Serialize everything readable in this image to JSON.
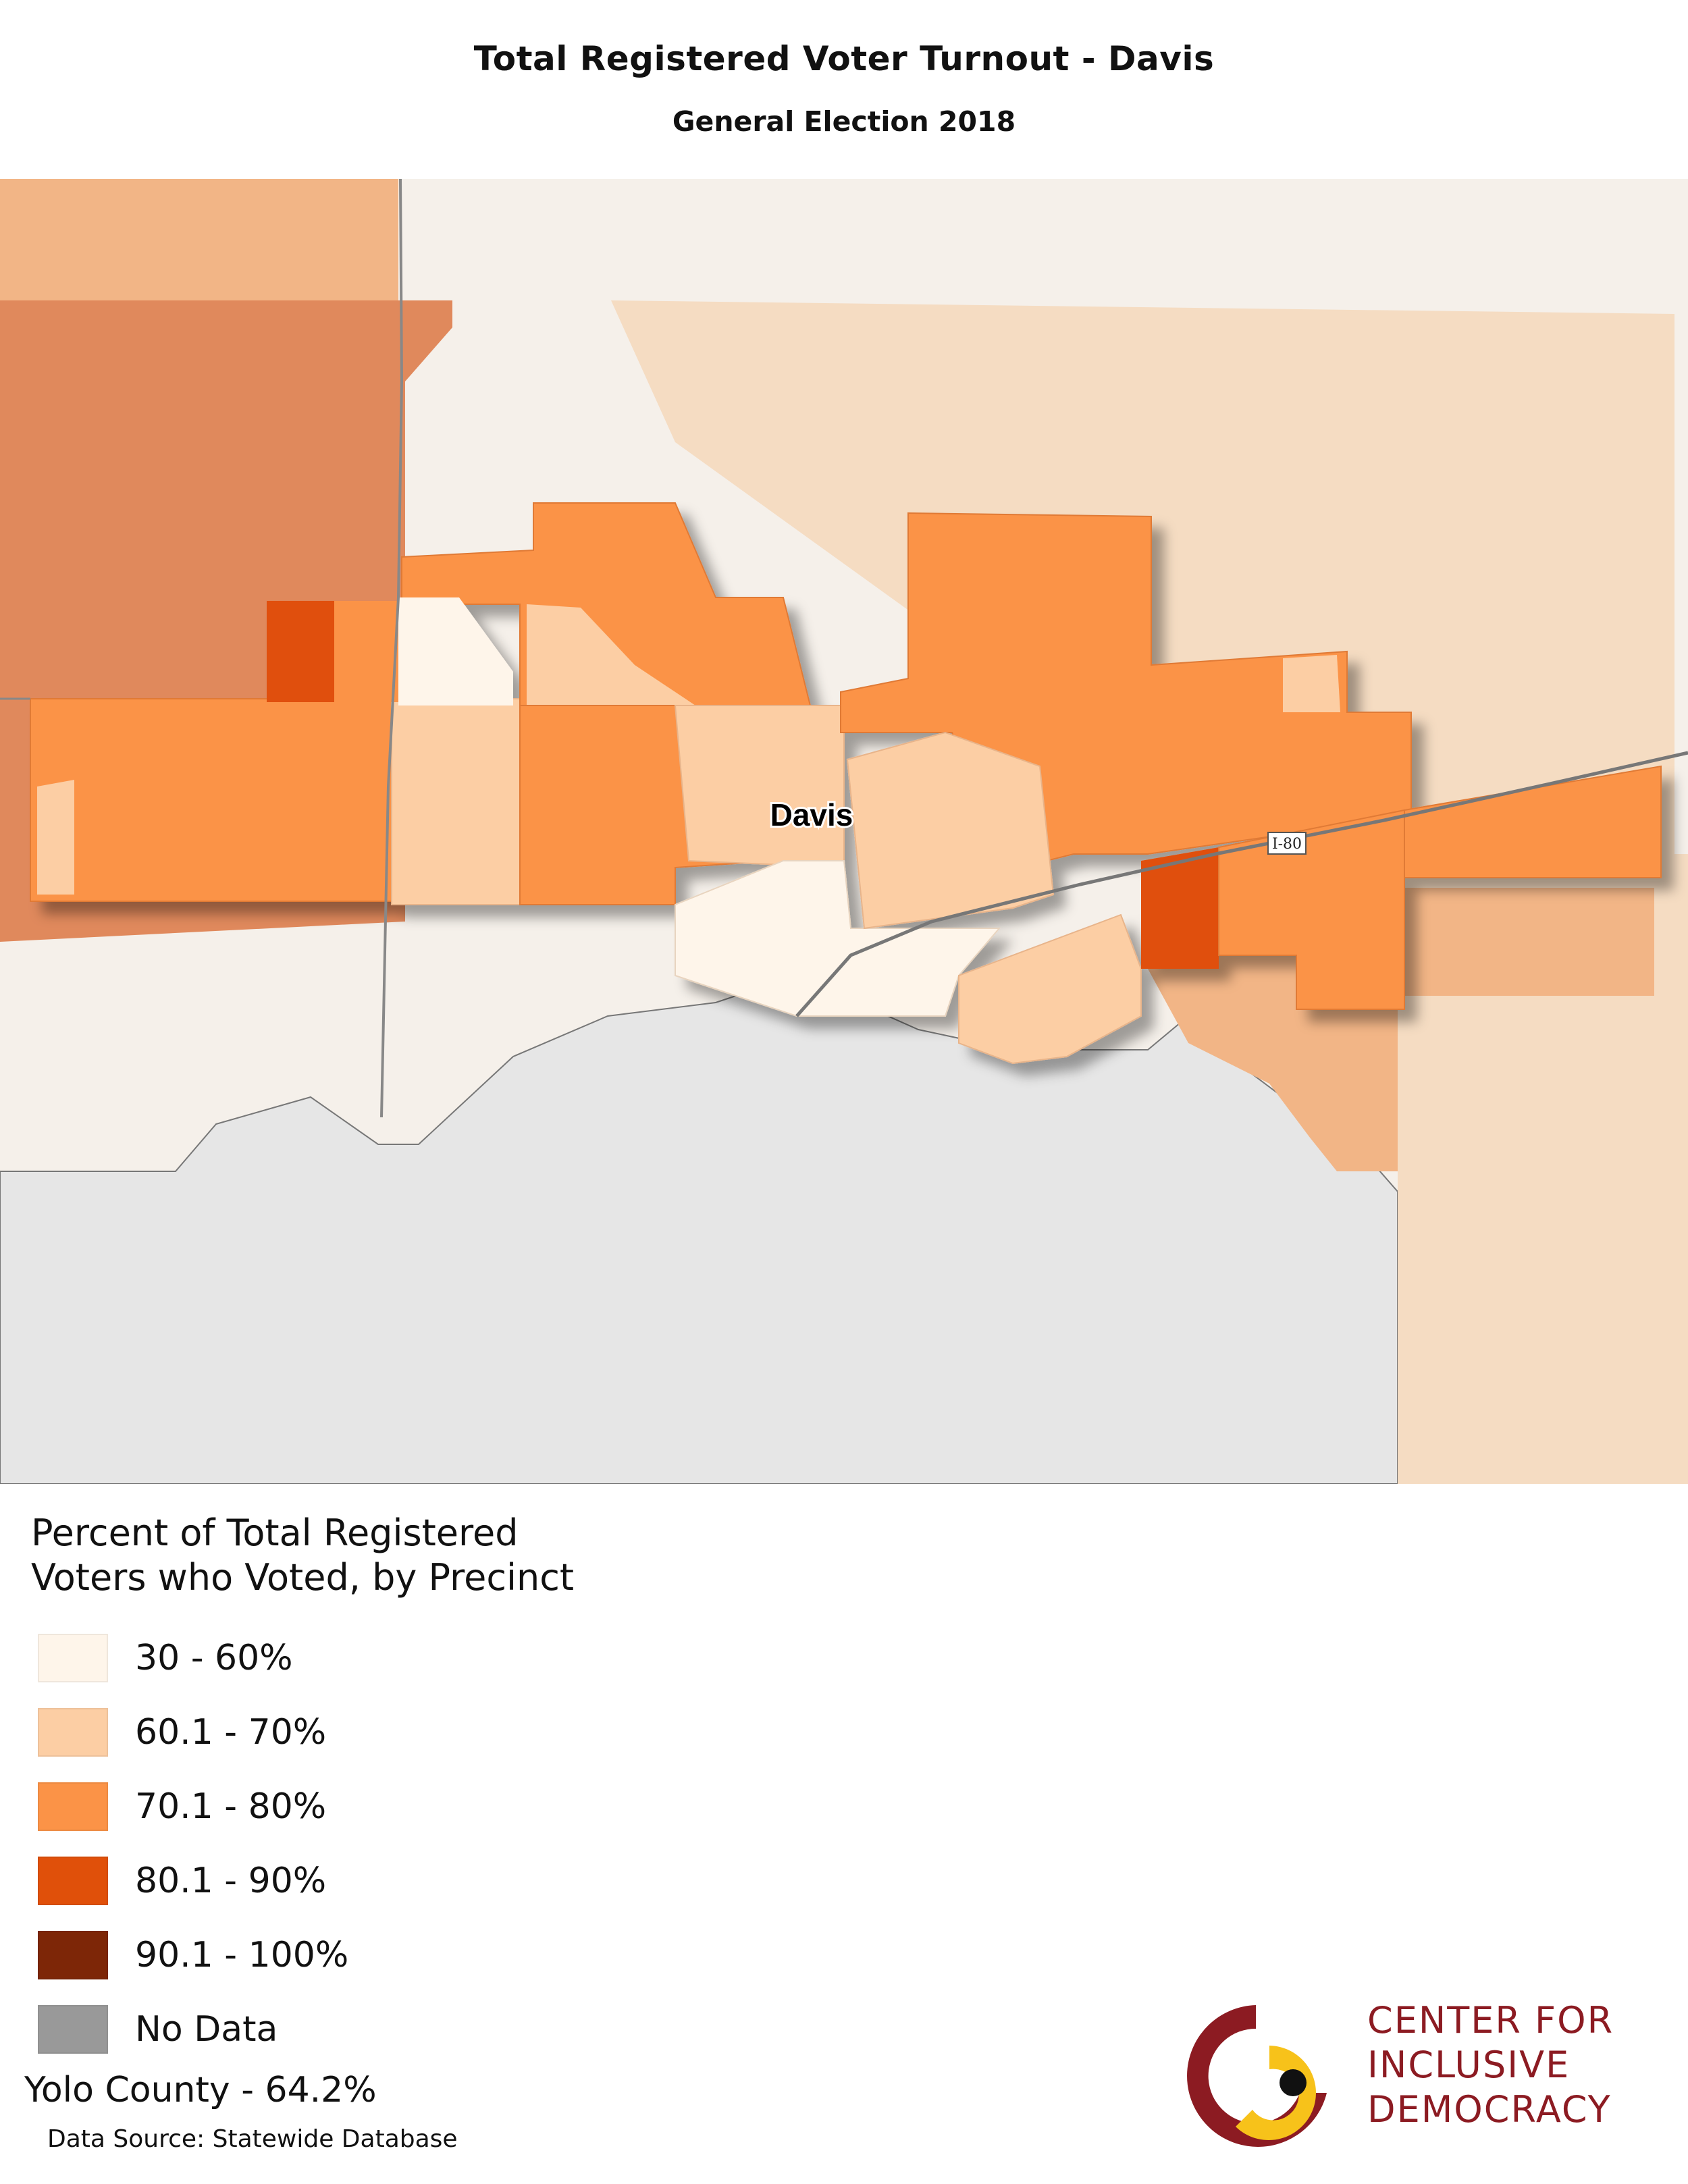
{
  "title": "Total Registered Voter Turnout - Davis",
  "subtitle": "General Election 2018",
  "map": {
    "place_label": "Davis",
    "highway_label": "I-80"
  },
  "legend": {
    "title_line1": "Percent of Total Registered",
    "title_line2": "Voters who Voted, by Precinct",
    "items": [
      {
        "label": "30 - 60%",
        "color": "#fef5ea"
      },
      {
        "label": "60.1 - 70%",
        "color": "#fccea4"
      },
      {
        "label": "70.1 - 80%",
        "color": "#fb9347"
      },
      {
        "label": "80.1 - 90%",
        "color": "#e0500a"
      },
      {
        "label": "90.1 - 100%",
        "color": "#7d2607"
      },
      {
        "label": "No Data",
        "color": "#999999"
      }
    ]
  },
  "county_note": "Yolo County - 64.2%",
  "data_source": "Data Source: Statewide Database",
  "logo": {
    "line1": "Center for",
    "line2": "Inclusive",
    "line3": "Democracy",
    "color_primary": "#8c1b22",
    "color_accent": "#f7c21a"
  }
}
